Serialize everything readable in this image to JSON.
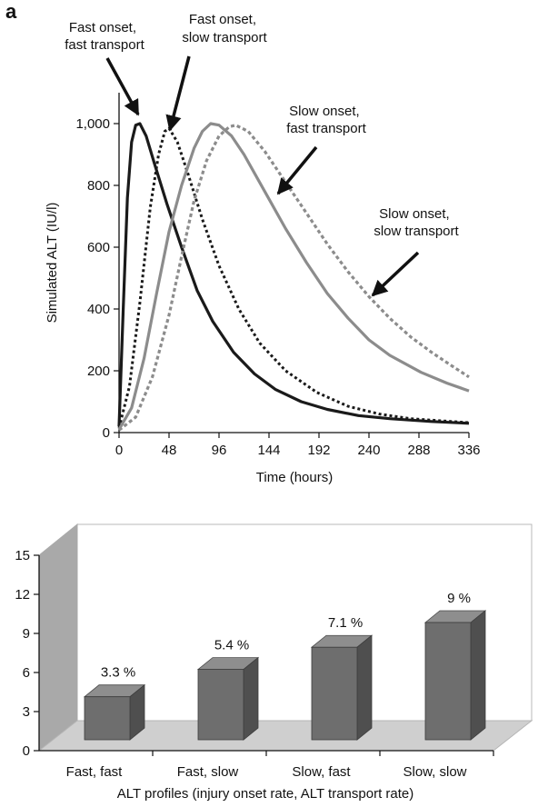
{
  "panel_label": "a",
  "chart_data": [
    {
      "type": "line",
      "xlabel": "Time (hours)",
      "ylabel": "Simulated ALT (IU/l)",
      "xlim": [
        0,
        336
      ],
      "ylim": [
        0,
        1050
      ],
      "x_ticks": [
        0,
        48,
        96,
        144,
        192,
        240,
        288,
        336
      ],
      "x_tick_labels": [
        "0",
        "48",
        "96",
        "144",
        "192",
        "240",
        "288",
        "336"
      ],
      "y_ticks": [
        0,
        200,
        400,
        600,
        800,
        1000
      ],
      "y_tick_labels": [
        "0",
        "200",
        "400",
        "600",
        "800",
        "1,000"
      ],
      "grid": false,
      "series": [
        {
          "color": "#1a1a1a",
          "dash": "solid",
          "points": [
            [
              0,
              20
            ],
            [
              4,
              400
            ],
            [
              8,
              760
            ],
            [
              12,
              940
            ],
            [
              16,
              995
            ],
            [
              20,
              1000
            ],
            [
              26,
              960
            ],
            [
              34,
              870
            ],
            [
              46,
              740
            ],
            [
              60,
              600
            ],
            [
              75,
              460
            ],
            [
              90,
              360
            ],
            [
              110,
              260
            ],
            [
              130,
              190
            ],
            [
              150,
              140
            ],
            [
              175,
              100
            ],
            [
              200,
              75
            ],
            [
              230,
              55
            ],
            [
              260,
              45
            ],
            [
              300,
              36
            ],
            [
              336,
              30
            ]
          ]
        },
        {
          "color": "#1a1a1a",
          "dash": "dotted",
          "points": [
            [
              0,
              15
            ],
            [
              10,
              150
            ],
            [
              20,
              420
            ],
            [
              30,
              730
            ],
            [
              38,
              900
            ],
            [
              44,
              975
            ],
            [
              48,
              985
            ],
            [
              56,
              940
            ],
            [
              66,
              840
            ],
            [
              80,
              690
            ],
            [
              96,
              540
            ],
            [
              115,
              400
            ],
            [
              135,
              290
            ],
            [
              160,
              200
            ],
            [
              190,
              130
            ],
            [
              220,
              85
            ],
            [
              250,
              60
            ],
            [
              280,
              45
            ],
            [
              310,
              38
            ],
            [
              336,
              32
            ]
          ]
        },
        {
          "color": "#8c8c8c",
          "dash": "solid",
          "points": [
            [
              0,
              10
            ],
            [
              12,
              80
            ],
            [
              24,
              240
            ],
            [
              36,
              450
            ],
            [
              48,
              650
            ],
            [
              60,
              800
            ],
            [
              72,
              920
            ],
            [
              80,
              975
            ],
            [
              88,
              1000
            ],
            [
              96,
              995
            ],
            [
              108,
              960
            ],
            [
              120,
              900
            ],
            [
              140,
              780
            ],
            [
              160,
              660
            ],
            [
              180,
              550
            ],
            [
              200,
              450
            ],
            [
              220,
              370
            ],
            [
              240,
              300
            ],
            [
              260,
              250
            ],
            [
              290,
              195
            ],
            [
              315,
              160
            ],
            [
              336,
              135
            ]
          ]
        },
        {
          "color": "#8c8c8c",
          "dash": "dashed",
          "points": [
            [
              0,
              8
            ],
            [
              16,
              50
            ],
            [
              32,
              180
            ],
            [
              48,
              380
            ],
            [
              60,
              570
            ],
            [
              72,
              750
            ],
            [
              84,
              880
            ],
            [
              96,
              960
            ],
            [
              106,
              990
            ],
            [
              112,
              995
            ],
            [
              124,
              975
            ],
            [
              140,
              910
            ],
            [
              160,
              810
            ],
            [
              180,
              710
            ],
            [
              200,
              610
            ],
            [
              220,
              520
            ],
            [
              240,
              440
            ],
            [
              260,
              370
            ],
            [
              280,
              310
            ],
            [
              300,
              260
            ],
            [
              320,
              215
            ],
            [
              336,
              180
            ]
          ]
        }
      ],
      "annotations": [
        {
          "text": [
            "Fast onset,",
            "fast transport"
          ]
        },
        {
          "text": [
            "Fast onset,",
            "slow transport"
          ]
        },
        {
          "text": [
            "Slow onset,",
            "fast transport"
          ]
        },
        {
          "text": [
            "Slow onset,",
            "slow transport"
          ]
        }
      ]
    },
    {
      "type": "bar",
      "categories": [
        "Fast, fast",
        "Fast, slow",
        "Slow, fast",
        "Slow, slow"
      ],
      "values": [
        3.3,
        5.4,
        7.1,
        9
      ],
      "data_labels": [
        "3.3 %",
        "5.4 %",
        "7.1 %",
        "9 %"
      ],
      "xlabel": "ALT profiles (injury onset rate, ALT transport rate)",
      "ylabel": "",
      "ylim": [
        0,
        15
      ],
      "y_ticks": [
        0,
        3,
        6,
        9,
        12,
        15
      ],
      "y_tick_labels": [
        "0",
        "3",
        "6",
        "9",
        "12",
        "15"
      ],
      "bar_color": "#6e6e6e",
      "style": "3d"
    }
  ]
}
